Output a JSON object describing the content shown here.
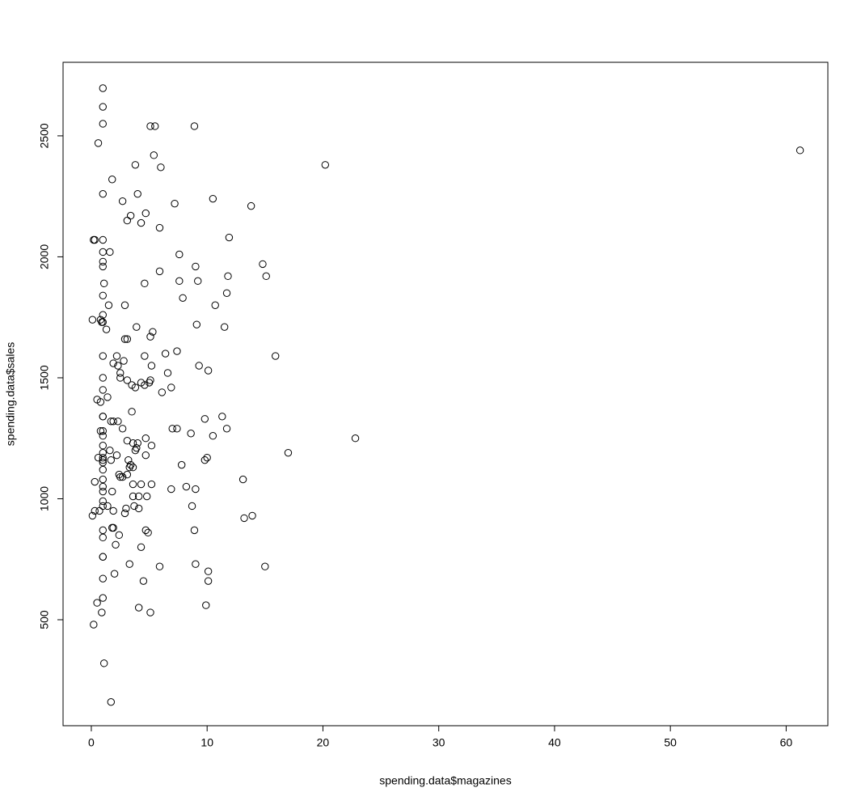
{
  "chart_data": {
    "type": "scatter",
    "x_label": "spending.data$magazines",
    "y_label": "spending.data$sales",
    "color": "#000000",
    "grid": false,
    "xlim": [
      -2.44,
      63.6
    ],
    "ylim": [
      62,
      2804
    ],
    "xticks": [
      0,
      10,
      20,
      30,
      40,
      50,
      60
    ],
    "yticks": [
      500,
      1000,
      1500,
      2000,
      2500
    ],
    "x": [
      1.0,
      1.0,
      1.0,
      0.6,
      5.1,
      5.5,
      8.9,
      5.4,
      3.8,
      6.0,
      20.2,
      61.2,
      1.8,
      1.0,
      4.0,
      2.7,
      10.5,
      7.2,
      13.8,
      4.7,
      3.4,
      3.1,
      4.3,
      5.9,
      0.2,
      0.3,
      1.0,
      11.9,
      1.0,
      1.6,
      7.6,
      1.0,
      1.0,
      9.0,
      14.8,
      5.9,
      11.8,
      15.1,
      1.1,
      4.6,
      7.6,
      9.2,
      1.0,
      7.9,
      11.7,
      1.5,
      2.9,
      10.7,
      0.1,
      0.8,
      1.0,
      0.9,
      1.0,
      1.3,
      3.9,
      9.1,
      11.5,
      5.3,
      5.1,
      2.9,
      3.1,
      1.0,
      2.2,
      4.6,
      6.4,
      7.4,
      15.9,
      1.9,
      2.3,
      2.8,
      5.2,
      9.3,
      10.1,
      2.5,
      6.6,
      1.0,
      2.5,
      3.1,
      5.1,
      5.0,
      4.3,
      3.5,
      4.6,
      3.8,
      6.9,
      1.0,
      6.1,
      1.4,
      0.5,
      0.8,
      3.5,
      1.0,
      1.0,
      11.3,
      9.8,
      1.7,
      1.9,
      2.3,
      2.7,
      7.0,
      7.4,
      11.7,
      0.8,
      1.0,
      1.0,
      8.6,
      10.5,
      22.8,
      4.7,
      3.1,
      3.6,
      4.0,
      1.0,
      5.2,
      3.9,
      3.8,
      1.6,
      1.0,
      17.0,
      0.6,
      1.0,
      2.2,
      4.7,
      10.0,
      9.8,
      1.0,
      1.0,
      1.7,
      3.2,
      3.4,
      3.6,
      3.3,
      7.8,
      1.0,
      2.4,
      2.5,
      2.7,
      3.1,
      0.3,
      1.0,
      13.1,
      3.6,
      4.3,
      5.2,
      8.2,
      1.0,
      6.9,
      9.0,
      1.0,
      1.8,
      3.6,
      4.1,
      4.8,
      1.0,
      1.0,
      1.4,
      3.7,
      8.7,
      4.1,
      3.0,
      0.3,
      0.7,
      1.9,
      2.9,
      0.1,
      13.9,
      13.2,
      1.0,
      1.9,
      1.8,
      4.7,
      4.9,
      8.9,
      2.4,
      1.0,
      2.1,
      4.3,
      1.0,
      1.0,
      3.3,
      9.0,
      5.9,
      15.0,
      10.1,
      2.0,
      1.0,
      4.5,
      10.1,
      1.0,
      0.5,
      4.1,
      9.9,
      0.9,
      5.1,
      0.2,
      1.1,
      1.7
    ],
    "values": [
      2697,
      2620,
      2550,
      2470,
      2540,
      2540,
      2540,
      2420,
      2380,
      2370,
      2380,
      2440,
      2320,
      2260,
      2260,
      2230,
      2240,
      2220,
      2210,
      2180,
      2170,
      2150,
      2140,
      2120,
      2070,
      2070,
      2070,
      2080,
      2020,
      2020,
      2010,
      1980,
      1960,
      1960,
      1970,
      1940,
      1920,
      1920,
      1890,
      1890,
      1900,
      1900,
      1840,
      1830,
      1850,
      1800,
      1800,
      1800,
      1740,
      1740,
      1760,
      1730,
      1730,
      1700,
      1710,
      1720,
      1710,
      1690,
      1670,
      1660,
      1660,
      1590,
      1590,
      1590,
      1600,
      1610,
      1590,
      1560,
      1550,
      1570,
      1550,
      1550,
      1530,
      1520,
      1520,
      1500,
      1500,
      1490,
      1490,
      1480,
      1480,
      1470,
      1470,
      1460,
      1460,
      1450,
      1440,
      1420,
      1410,
      1400,
      1360,
      1340,
      1340,
      1340,
      1330,
      1320,
      1320,
      1320,
      1290,
      1290,
      1290,
      1290,
      1280,
      1280,
      1260,
      1270,
      1260,
      1250,
      1250,
      1240,
      1230,
      1230,
      1220,
      1220,
      1210,
      1200,
      1200,
      1190,
      1190,
      1170,
      1170,
      1180,
      1180,
      1170,
      1160,
      1160,
      1150,
      1160,
      1160,
      1140,
      1130,
      1130,
      1140,
      1120,
      1100,
      1090,
      1090,
      1100,
      1070,
      1080,
      1080,
      1060,
      1060,
      1060,
      1050,
      1050,
      1040,
      1040,
      1030,
      1030,
      1010,
      1010,
      1010,
      990,
      970,
      970,
      970,
      970,
      960,
      960,
      950,
      950,
      950,
      940,
      930,
      930,
      920,
      870,
      880,
      880,
      870,
      860,
      870,
      850,
      840,
      810,
      800,
      760,
      760,
      730,
      730,
      720,
      720,
      700,
      690,
      670,
      660,
      660,
      590,
      570,
      550,
      560,
      530,
      530,
      480,
      320,
      160
    ]
  }
}
